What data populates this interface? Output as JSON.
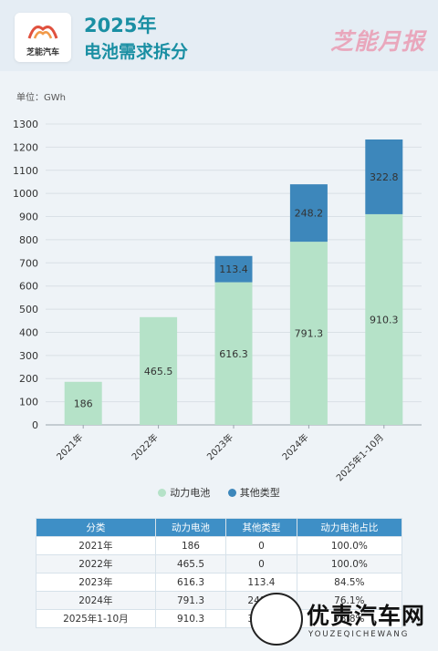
{
  "header": {
    "logo_text": "芝能汽车",
    "title_line1": "2025年",
    "title_line2": "电池需求拆分",
    "brand": "芝能月报"
  },
  "unit_label": "单位：GWh",
  "colors": {
    "power": "#b5e2c8",
    "other": "#3d87bb",
    "grid": "#d9e0e6"
  },
  "chart_data": {
    "type": "bar",
    "stacked": true,
    "categories": [
      "2021年",
      "2022年",
      "2023年",
      "2024年",
      "2025年1-10月"
    ],
    "series": [
      {
        "name": "动力电池",
        "values": [
          186,
          465.5,
          616.3,
          791.3,
          910.3
        ]
      },
      {
        "name": "其他类型",
        "values": [
          0,
          0,
          113.4,
          248.2,
          322.8
        ]
      }
    ],
    "ylim": [
      0,
      1300
    ],
    "yticks": [
      0,
      100,
      200,
      300,
      400,
      500,
      600,
      700,
      800,
      900,
      1000,
      1100,
      1200,
      1300
    ],
    "ylabel": "单位：GWh",
    "grid": true,
    "legend_position": "bottom"
  },
  "legend": [
    {
      "label": "动力电池",
      "color": "#b5e2c8"
    },
    {
      "label": "其他类型",
      "color": "#3d87bb"
    }
  ],
  "table": {
    "headers": [
      "分类",
      "动力电池",
      "其他类型",
      "动力电池占比"
    ],
    "rows": [
      [
        "2021年",
        "186",
        "0",
        "100.0%"
      ],
      [
        "2022年",
        "465.5",
        "0",
        "100.0%"
      ],
      [
        "2023年",
        "616.3",
        "113.4",
        "84.5%"
      ],
      [
        "2024年",
        "791.3",
        "248.2",
        "76.1%"
      ],
      [
        "2025年1-10月",
        "910.3",
        "322.8",
        "73.8%"
      ]
    ]
  },
  "watermark": {
    "main": "优责汽车网",
    "sub": "YOUZEQICHEWANG"
  }
}
